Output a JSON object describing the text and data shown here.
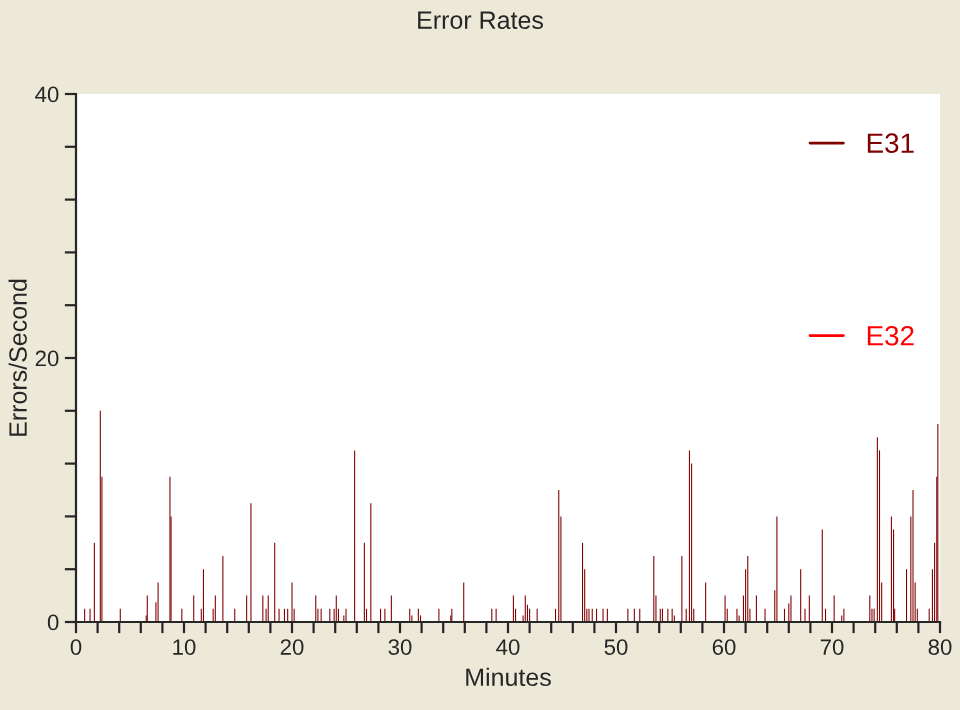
{
  "chart_data": {
    "type": "bar",
    "title": "Error Rates",
    "xlabel": "Minutes",
    "ylabel": "Errors/Second",
    "x": [
      0.8,
      1.3,
      1.7,
      2.25,
      2.4,
      4.1,
      6.5,
      6.6,
      7.4,
      7.6,
      8.7,
      8.8,
      9.8,
      10.9,
      11.6,
      11.8,
      12.7,
      12.9,
      13.6,
      14.7,
      15.8,
      16.2,
      17.3,
      17.6,
      17.8,
      18.4,
      18.8,
      19.3,
      19.6,
      20.0,
      20.2,
      22.2,
      22.4,
      22.7,
      23.5,
      23.9,
      24.1,
      24.3,
      24.8,
      25.0,
      25.8,
      26.7,
      26.9,
      27.3,
      28.2,
      28.6,
      29.2,
      30.9,
      31.1,
      31.7,
      31.9,
      33.6,
      34.7,
      34.8,
      35.9,
      38.5,
      38.9,
      40.5,
      40.7,
      41.4,
      41.6,
      41.8,
      42.0,
      42.7,
      44.4,
      44.7,
      44.9,
      46.9,
      47.1,
      47.3,
      47.5,
      47.8,
      48.2,
      48.8,
      49.2,
      51.1,
      51.7,
      52.2,
      53.5,
      53.7,
      54.1,
      54.3,
      54.8,
      55.2,
      55.4,
      56.1,
      56.5,
      56.8,
      57.0,
      57.2,
      58.3,
      60.1,
      60.3,
      61.2,
      61.4,
      61.8,
      62.0,
      62.2,
      62.4,
      63.0,
      63.8,
      64.7,
      64.9,
      65.6,
      66.0,
      66.2,
      67.1,
      67.5,
      67.9,
      69.1,
      69.4,
      70.2,
      70.9,
      71.1,
      73.5,
      73.7,
      73.9,
      74.2,
      74.4,
      74.6,
      75.5,
      75.7,
      75.8,
      76.9,
      77.3,
      77.5,
      77.7,
      77.9,
      79.0,
      79.3,
      79.5,
      79.7,
      79.8
    ],
    "series": [
      {
        "name": "E31",
        "color": "#800000",
        "values": [
          1,
          1,
          6,
          16,
          11,
          1,
          0.5,
          2,
          1.5,
          3,
          11,
          8,
          1,
          2,
          1,
          4,
          1,
          2,
          5,
          1,
          2,
          9,
          2,
          1,
          2,
          6,
          1,
          1,
          1,
          3,
          1,
          2,
          1,
          1,
          1,
          1,
          2,
          1,
          0.5,
          1,
          13,
          6,
          1,
          9,
          1,
          1,
          2,
          1,
          0.5,
          1,
          0.5,
          1,
          0.5,
          1,
          3,
          1,
          1,
          2,
          1,
          0.5,
          2,
          1.3,
          1,
          1,
          1,
          10,
          8,
          6,
          4,
          1,
          1,
          1,
          1,
          1,
          1,
          1,
          1,
          1,
          5,
          2,
          1,
          1,
          1,
          1,
          0.5,
          5,
          1,
          13,
          12,
          1,
          3,
          2,
          1,
          1,
          0.5,
          2,
          4,
          5,
          1,
          2,
          1,
          2.4,
          8,
          1,
          1.4,
          2,
          4,
          1,
          2,
          7,
          1,
          2,
          0.5,
          1,
          2,
          1,
          1,
          14,
          13,
          3,
          8,
          7,
          1,
          4,
          8,
          10,
          3,
          1,
          1,
          4,
          6,
          11,
          15
        ]
      },
      {
        "name": "E32",
        "color": "#ff0000",
        "values": [
          null,
          null,
          null,
          null,
          null,
          null,
          null,
          null,
          null,
          null,
          null,
          null,
          null,
          null,
          null,
          null,
          null,
          null,
          null,
          null,
          null,
          null,
          null,
          null,
          null,
          null,
          null,
          null,
          null,
          null,
          null,
          null,
          null,
          null,
          null,
          null,
          null,
          null,
          null,
          null,
          null,
          null,
          null,
          null,
          null,
          null,
          null,
          null,
          null,
          null,
          null,
          null,
          null,
          null,
          null,
          null,
          null,
          null,
          null,
          null,
          null,
          null,
          null,
          null,
          null,
          null,
          null,
          null,
          null,
          null,
          null,
          null,
          null,
          null,
          null,
          null,
          null,
          null,
          null,
          null,
          null,
          null,
          null,
          null,
          null,
          null,
          null,
          null,
          null,
          null,
          null,
          null,
          null,
          null,
          null,
          null,
          null,
          null,
          null,
          null,
          null,
          null,
          null,
          null,
          null,
          null,
          null,
          null,
          null,
          null,
          null,
          null,
          null,
          null,
          null,
          null,
          null,
          null,
          null,
          null,
          null,
          null,
          null,
          null,
          null,
          null,
          null,
          null,
          null,
          null,
          null,
          null,
          null
        ]
      }
    ],
    "xlim": [
      0,
      80
    ],
    "ylim": [
      0,
      40
    ],
    "xticks": [
      0,
      {
        "value": 2,
        "label": null
      },
      {
        "value": 4,
        "label": null
      },
      {
        "value": 6,
        "label": null
      },
      {
        "value": 8,
        "label": null
      },
      10,
      {
        "value": 12,
        "label": null
      },
      {
        "value": 14,
        "label": null
      },
      {
        "value": 16,
        "label": null
      },
      {
        "value": 18,
        "label": null
      },
      20,
      {
        "value": 22,
        "label": null
      },
      {
        "value": 24,
        "label": null
      },
      {
        "value": 26,
        "label": null
      },
      {
        "value": 28,
        "label": null
      },
      30,
      {
        "value": 32,
        "label": null
      },
      {
        "value": 34,
        "label": null
      },
      {
        "value": 36,
        "label": null
      },
      {
        "value": 38,
        "label": null
      },
      40,
      {
        "value": 42,
        "label": null
      },
      {
        "value": 44,
        "label": null
      },
      {
        "value": 46,
        "label": null
      },
      {
        "value": 48,
        "label": null
      },
      50,
      {
        "value": 52,
        "label": null
      },
      {
        "value": 54,
        "label": null
      },
      {
        "value": 56,
        "label": null
      },
      {
        "value": 58,
        "label": null
      },
      60,
      {
        "value": 62,
        "label": null
      },
      {
        "value": 64,
        "label": null
      },
      {
        "value": 66,
        "label": null
      },
      {
        "value": 68,
        "label": null
      },
      70,
      {
        "value": 72,
        "label": null
      },
      {
        "value": 74,
        "label": null
      },
      {
        "value": 76,
        "label": null
      },
      {
        "value": 78,
        "label": null
      },
      80
    ],
    "yticks": [
      0,
      {
        "value": 4,
        "label": null
      },
      {
        "value": 8,
        "label": null
      },
      {
        "value": 12,
        "label": null
      },
      {
        "value": 16,
        "label": null
      },
      20,
      {
        "value": 24,
        "label": null
      },
      {
        "value": 28,
        "label": null
      },
      {
        "value": 32,
        "label": null
      },
      {
        "value": 36,
        "label": null
      },
      40
    ],
    "grid": false,
    "legend": "right"
  }
}
